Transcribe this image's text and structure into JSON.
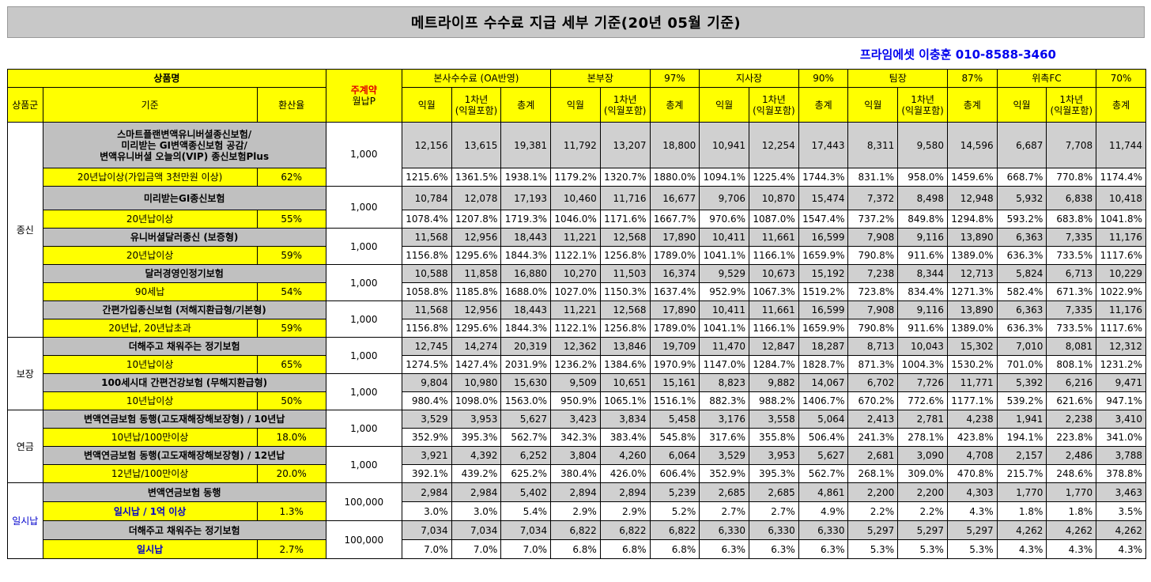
{
  "title": "메트라이프 수수료 지급 세부 기준(20년 05월 기준)",
  "contact": "프라임에셋 이충훈 010-8588-3460",
  "header": {
    "product_name": "상품명",
    "monthly_premium_top": "주계약",
    "monthly_premium_bottom": "월납P",
    "category": "상품군",
    "criteria": "기준",
    "conversion_rate": "환산율",
    "groups": [
      {
        "label": "본사수수료 (OA반영)",
        "pct": ""
      },
      {
        "label": "본부장",
        "pct": "97%"
      },
      {
        "label": "지사장",
        "pct": "90%"
      },
      {
        "label": "팀장",
        "pct": "87%"
      },
      {
        "label": "위촉FC",
        "pct": "70%"
      }
    ],
    "sub": [
      "익월",
      "1차년\n(익월포함)",
      "총계"
    ]
  },
  "categories": [
    {
      "name": "종신"
    },
    {
      "name": "보장"
    },
    {
      "name": "연금"
    },
    {
      "name": "일시납"
    }
  ],
  "products": [
    {
      "name": "스마트플랜변액유니버셜종신보험/\n미리받는 GI변액종신보험 공감/\n변액유니버셜 오늘의(VIP) 종신보험Plus",
      "criteria": "20년납이상(가입금액 3천만원 이상)",
      "rate": "62%",
      "premium": "1,000",
      "amounts": [
        "12,156",
        "13,615",
        "19,381",
        "11,792",
        "13,207",
        "18,800",
        "10,941",
        "12,254",
        "17,443",
        "8,311",
        "9,580",
        "14,596",
        "6,687",
        "7,708",
        "11,744"
      ],
      "pcts": [
        "1215.6%",
        "1361.5%",
        "1938.1%",
        "1179.2%",
        "1320.7%",
        "1880.0%",
        "1094.1%",
        "1225.4%",
        "1744.3%",
        "831.1%",
        "958.0%",
        "1459.6%",
        "668.7%",
        "770.8%",
        "1174.4%"
      ]
    },
    {
      "name": "미리받는GI종신보험",
      "criteria": "20년납이상",
      "rate": "55%",
      "premium": "1,000",
      "amounts": [
        "10,784",
        "12,078",
        "17,193",
        "10,460",
        "11,716",
        "16,677",
        "9,706",
        "10,870",
        "15,474",
        "7,372",
        "8,498",
        "12,948",
        "5,932",
        "6,838",
        "10,418"
      ],
      "pcts": [
        "1078.4%",
        "1207.8%",
        "1719.3%",
        "1046.0%",
        "1171.6%",
        "1667.7%",
        "970.6%",
        "1087.0%",
        "1547.4%",
        "737.2%",
        "849.8%",
        "1294.8%",
        "593.2%",
        "683.8%",
        "1041.8%"
      ]
    },
    {
      "name": "유니버셜달러종신 (보증형)",
      "criteria": "20년납이상",
      "rate": "59%",
      "premium": "1,000",
      "amounts": [
        "11,568",
        "12,956",
        "18,443",
        "11,221",
        "12,568",
        "17,890",
        "10,411",
        "11,661",
        "16,599",
        "7,908",
        "9,116",
        "13,890",
        "6,363",
        "7,335",
        "11,176"
      ],
      "pcts": [
        "1156.8%",
        "1295.6%",
        "1844.3%",
        "1122.1%",
        "1256.8%",
        "1789.0%",
        "1041.1%",
        "1166.1%",
        "1659.9%",
        "790.8%",
        "911.6%",
        "1389.0%",
        "636.3%",
        "733.5%",
        "1117.6%"
      ]
    },
    {
      "name": "달러경영인정기보험",
      "criteria": "90세납",
      "rate": "54%",
      "premium": "1,000",
      "amounts": [
        "10,588",
        "11,858",
        "16,880",
        "10,270",
        "11,503",
        "16,374",
        "9,529",
        "10,673",
        "15,192",
        "7,238",
        "8,344",
        "12,713",
        "5,824",
        "6,713",
        "10,229"
      ],
      "pcts": [
        "1058.8%",
        "1185.8%",
        "1688.0%",
        "1027.0%",
        "1150.3%",
        "1637.4%",
        "952.9%",
        "1067.3%",
        "1519.2%",
        "723.8%",
        "834.4%",
        "1271.3%",
        "582.4%",
        "671.3%",
        "1022.9%"
      ]
    },
    {
      "name": "간편가입종신보험 (저해지환급형/기본형)",
      "criteria": "20년납, 20년납초과",
      "rate": "59%",
      "premium": "1,000",
      "amounts": [
        "11,568",
        "12,956",
        "18,443",
        "11,221",
        "12,568",
        "17,890",
        "10,411",
        "11,661",
        "16,599",
        "7,908",
        "9,116",
        "13,890",
        "6,363",
        "7,335",
        "11,176"
      ],
      "pcts": [
        "1156.8%",
        "1295.6%",
        "1844.3%",
        "1122.1%",
        "1256.8%",
        "1789.0%",
        "1041.1%",
        "1166.1%",
        "1659.9%",
        "790.8%",
        "911.6%",
        "1389.0%",
        "636.3%",
        "733.5%",
        "1117.6%"
      ]
    },
    {
      "name": "더해주고 채워주는 정기보험",
      "criteria": "10년납이상",
      "rate": "65%",
      "premium": "1,000",
      "amounts": [
        "12,745",
        "14,274",
        "20,319",
        "12,362",
        "13,846",
        "19,709",
        "11,470",
        "12,847",
        "18,287",
        "8,713",
        "10,043",
        "15,302",
        "7,010",
        "8,081",
        "12,312"
      ],
      "pcts": [
        "1274.5%",
        "1427.4%",
        "2031.9%",
        "1236.2%",
        "1384.6%",
        "1970.9%",
        "1147.0%",
        "1284.7%",
        "1828.7%",
        "871.3%",
        "1004.3%",
        "1530.2%",
        "701.0%",
        "808.1%",
        "1231.2%"
      ]
    },
    {
      "name": "100세시대 간편건강보험 (무해지환급형)",
      "criteria": "10년납이상",
      "rate": "50%",
      "premium": "1,000",
      "amounts": [
        "9,804",
        "10,980",
        "15,630",
        "9,509",
        "10,651",
        "15,161",
        "8,823",
        "9,882",
        "14,067",
        "6,702",
        "7,726",
        "11,771",
        "5,392",
        "6,216",
        "9,471"
      ],
      "pcts": [
        "980.4%",
        "1098.0%",
        "1563.0%",
        "950.9%",
        "1065.1%",
        "1516.1%",
        "882.3%",
        "988.2%",
        "1406.7%",
        "670.2%",
        "772.6%",
        "1177.1%",
        "539.2%",
        "621.6%",
        "947.1%"
      ]
    },
    {
      "name": "변액연금보험 동행(고도재해장해보장형) / 10년납",
      "criteria": "10년납/100만이상",
      "rate": "18.0%",
      "premium": "1,000",
      "amounts": [
        "3,529",
        "3,953",
        "5,627",
        "3,423",
        "3,834",
        "5,458",
        "3,176",
        "3,558",
        "5,064",
        "2,413",
        "2,781",
        "4,238",
        "1,941",
        "2,238",
        "3,410"
      ],
      "pcts": [
        "352.9%",
        "395.3%",
        "562.7%",
        "342.3%",
        "383.4%",
        "545.8%",
        "317.6%",
        "355.8%",
        "506.4%",
        "241.3%",
        "278.1%",
        "423.8%",
        "194.1%",
        "223.8%",
        "341.0%"
      ]
    },
    {
      "name": "변액연금보험 동행(고도재해장해보장형) / 12년납",
      "criteria": "12년납/100만이상",
      "rate": "20.0%",
      "premium": "1,000",
      "amounts": [
        "3,921",
        "4,392",
        "6,252",
        "3,804",
        "4,260",
        "6,064",
        "3,529",
        "3,953",
        "5,627",
        "2,681",
        "3,090",
        "4,708",
        "2,157",
        "2,486",
        "3,788"
      ],
      "pcts": [
        "392.1%",
        "439.2%",
        "625.2%",
        "380.4%",
        "426.0%",
        "606.4%",
        "352.9%",
        "395.3%",
        "562.7%",
        "268.1%",
        "309.0%",
        "470.8%",
        "215.7%",
        "248.6%",
        "378.8%"
      ]
    },
    {
      "name": "변액연금보험 동행",
      "criteria": "일시납 / 1억 이상",
      "rate": "1.3%",
      "premium": "100,000",
      "amounts": [
        "2,984",
        "2,984",
        "5,402",
        "2,894",
        "2,894",
        "5,239",
        "2,685",
        "2,685",
        "4,861",
        "2,200",
        "2,200",
        "4,303",
        "1,770",
        "1,770",
        "3,463"
      ],
      "pcts": [
        "3.0%",
        "3.0%",
        "5.4%",
        "2.9%",
        "2.9%",
        "5.2%",
        "2.7%",
        "2.7%",
        "4.9%",
        "2.2%",
        "2.2%",
        "4.3%",
        "1.8%",
        "1.8%",
        "3.5%"
      ]
    },
    {
      "name": "더해주고 채워주는 정기보험",
      "criteria": "일시납",
      "rate": "2.7%",
      "premium": "100,000",
      "amounts": [
        "7,034",
        "7,034",
        "7,034",
        "6,822",
        "6,822",
        "6,822",
        "6,330",
        "6,330",
        "6,330",
        "5,297",
        "5,297",
        "5,297",
        "4,262",
        "4,262",
        "4,262"
      ],
      "pcts": [
        "7.0%",
        "7.0%",
        "7.0%",
        "6.8%",
        "6.8%",
        "6.8%",
        "6.3%",
        "6.3%",
        "6.3%",
        "5.3%",
        "5.3%",
        "5.3%",
        "4.3%",
        "4.3%",
        "4.3%"
      ]
    }
  ]
}
